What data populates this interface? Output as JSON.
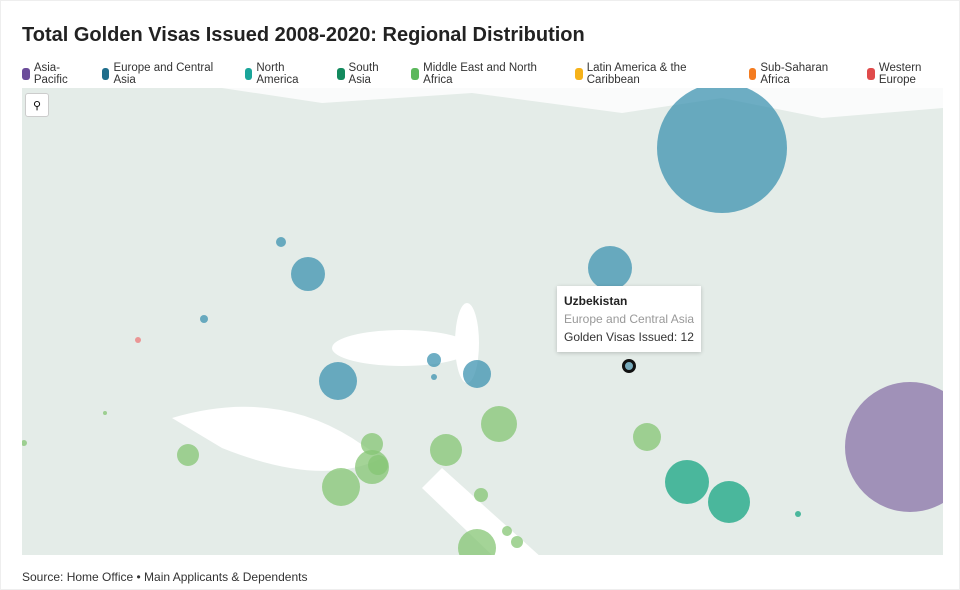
{
  "title": "Total Golden Visas Issued 2008-2020: Regional Distribution",
  "legend": [
    {
      "label": "Asia-Pacific",
      "color": "#6b4c9a"
    },
    {
      "label": "Europe and Central Asia",
      "color": "#1f6e8c"
    },
    {
      "label": "North America",
      "color": "#1aa59a"
    },
    {
      "label": "South Asia",
      "color": "#138a5e"
    },
    {
      "label": "Middle East and North Africa",
      "color": "#5cb85c"
    },
    {
      "label": "Latin America & the Caribbean",
      "color": "#f6b21a"
    },
    {
      "label": "Sub-Saharan Africa",
      "color": "#f47c20"
    },
    {
      "label": "Western Europe",
      "color": "#e04b4b"
    }
  ],
  "zoom_icon": "search-icon",
  "tooltip": {
    "country": "Uzbekistan",
    "region": "Europe and Central Asia",
    "value_label": "Golden Visas Issued: 12"
  },
  "source": "Source: Home Office • Main Applicants & Dependents"
}
